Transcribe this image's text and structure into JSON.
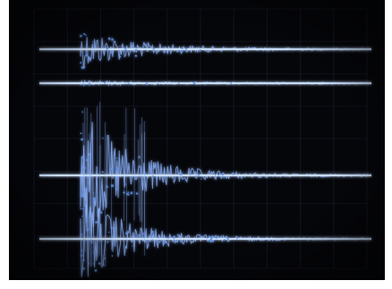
{
  "scope": {
    "colors": {
      "screen": "#05060a",
      "graticule": "#2a3550",
      "trace": "#cfe4ff",
      "glow": "#5e8fe0",
      "noise": "#8fb6ff"
    },
    "graticule": {
      "vertical_divisions": 10,
      "horizontal_divisions": 8
    },
    "traces": [
      {
        "id": "trace-1",
        "amplitude": 0.55,
        "decay": 0.55
      },
      {
        "id": "trace-2",
        "amplitude": 0.18,
        "decay": 0.7
      },
      {
        "id": "trace-3",
        "amplitude": 1.0,
        "decay": 0.45
      },
      {
        "id": "trace-4",
        "amplitude": 0.95,
        "decay": 0.45
      }
    ]
  }
}
